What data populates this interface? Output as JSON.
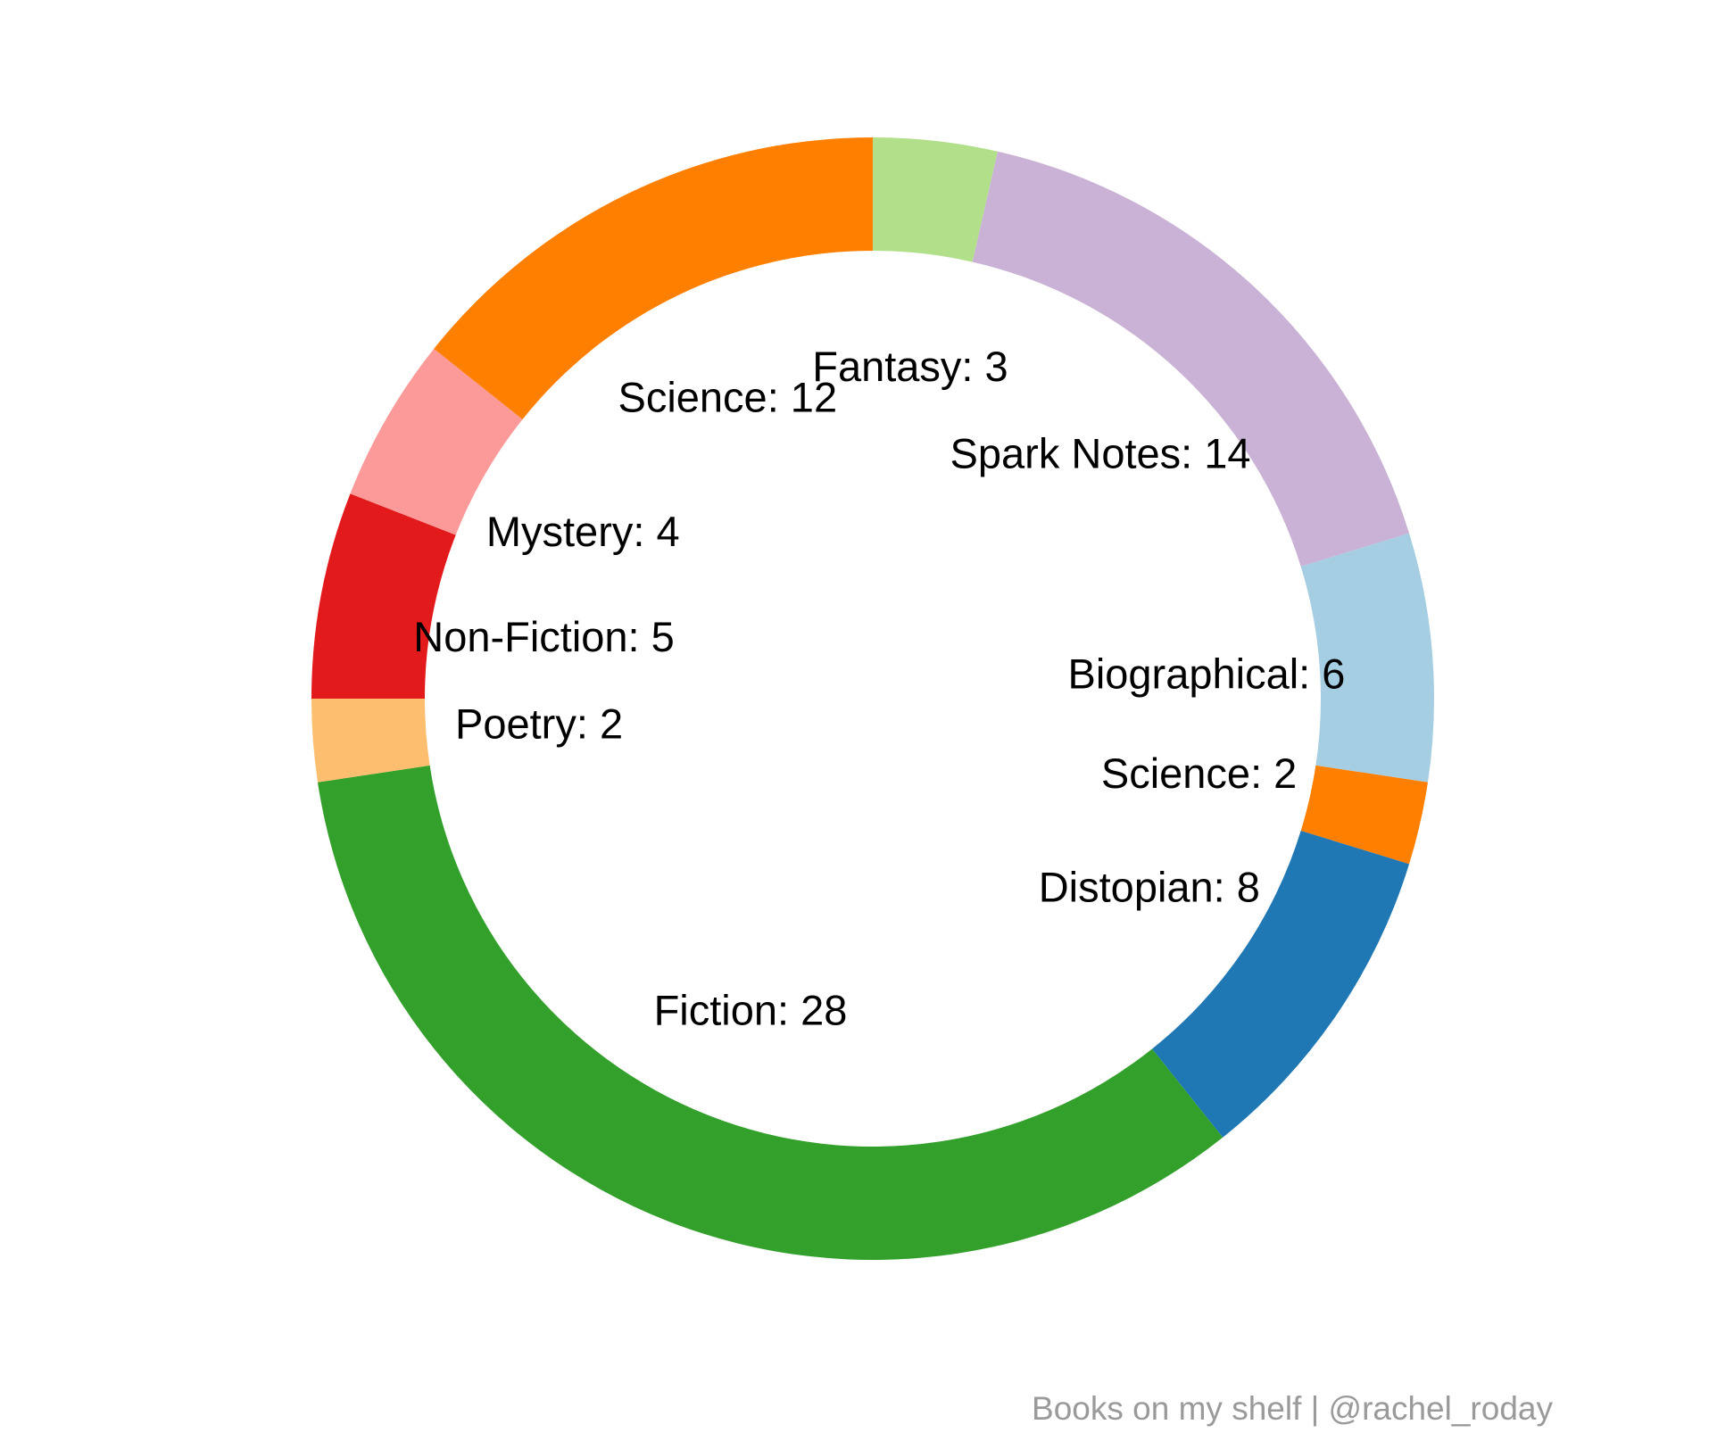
{
  "chart_data": {
    "type": "pie",
    "style": "donut",
    "start": "12 o'clock",
    "direction": "clockwise",
    "slices": [
      {
        "label": "Fantasy",
        "value": 3,
        "color": "#B2DF8A",
        "text": "Fantasy: 3"
      },
      {
        "label": "Spark Notes",
        "value": 14,
        "color": "#CAB2D6",
        "text": "Spark Notes: 14"
      },
      {
        "label": "Biographical",
        "value": 6,
        "color": "#A6CEE3",
        "text": "Biographical: 6"
      },
      {
        "label": "Science",
        "value": 2,
        "color": "#FF7F00",
        "text": "Science: 2"
      },
      {
        "label": "Distopian",
        "value": 8,
        "color": "#1F78B4",
        "text": "Distopian: 8"
      },
      {
        "label": "Fiction",
        "value": 28,
        "color": "#33A02C",
        "text": "Fiction: 28"
      },
      {
        "label": "Poetry",
        "value": 2,
        "color": "#FDBF6F",
        "text": "Poetry: 2"
      },
      {
        "label": "Non-Fiction",
        "value": 5,
        "color": "#E31A1C",
        "text": "Non-Fiction: 5"
      },
      {
        "label": "Mystery",
        "value": 4,
        "color": "#FB9A99",
        "text": "Mystery: 4"
      },
      {
        "label": "Science",
        "value": 12,
        "color": "#FF7F00",
        "text": "Science: 12"
      }
    ],
    "caption": "Books on my shelf | @rachel_roday"
  }
}
